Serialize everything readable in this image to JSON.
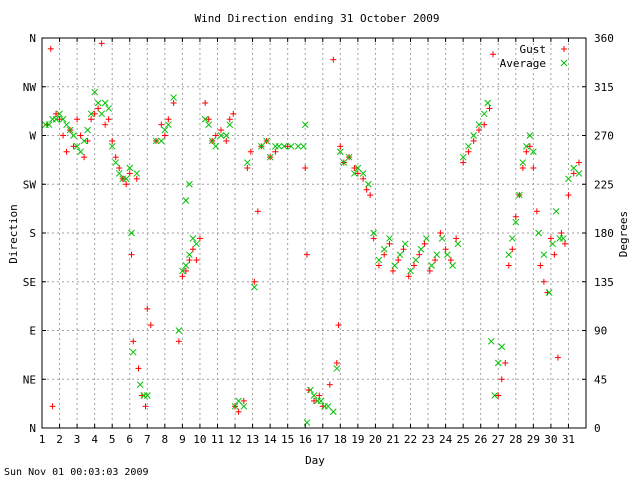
{
  "chart_data": {
    "type": "scatter",
    "title": "Wind Direction ending 31 October 2009",
    "xlabel": "Day",
    "ylabel_left": "Direction",
    "ylabel_right": "Degrees",
    "footer": "Sun Nov 01 00:03:03 2009",
    "xlim": [
      1,
      32
    ],
    "ylim": [
      0,
      360
    ],
    "grid": true,
    "legend_position": "top-right",
    "x_ticks": [
      "1",
      "2",
      "3",
      "4",
      "5",
      "6",
      "7",
      "8",
      "9",
      "10",
      "11",
      "12",
      "13",
      "14",
      "15",
      "16",
      "17",
      "18",
      "19",
      "20",
      "21",
      "22",
      "23",
      "24",
      "25",
      "26",
      "27",
      "28",
      "29",
      "30",
      "31"
    ],
    "left_ticks": [
      {
        "value": 0,
        "label": "N"
      },
      {
        "value": 45,
        "label": "NE"
      },
      {
        "value": 90,
        "label": "E"
      },
      {
        "value": 135,
        "label": "SE"
      },
      {
        "value": 180,
        "label": "S"
      },
      {
        "value": 225,
        "label": "SW"
      },
      {
        "value": 270,
        "label": "W"
      },
      {
        "value": 315,
        "label": "NW"
      },
      {
        "value": 360,
        "label": "N"
      }
    ],
    "right_ticks": [
      "0",
      "45",
      "90",
      "135",
      "180",
      "225",
      "270",
      "315",
      "360"
    ],
    "colors": {
      "gust": "#ff0000",
      "average": "#00c000",
      "grid": "#a0a0a0"
    },
    "series": [
      {
        "name": "Gust",
        "marker": "plus",
        "points": [
          [
            1.3,
            280
          ],
          [
            1.5,
            350
          ],
          [
            1.6,
            20
          ],
          [
            1.8,
            290
          ],
          [
            2.0,
            285
          ],
          [
            2.2,
            270
          ],
          [
            2.4,
            255
          ],
          [
            2.6,
            275
          ],
          [
            2.8,
            260
          ],
          [
            3.0,
            285
          ],
          [
            3.2,
            270
          ],
          [
            3.4,
            250
          ],
          [
            3.6,
            265
          ],
          [
            3.8,
            285
          ],
          [
            4.0,
            290
          ],
          [
            4.2,
            295
          ],
          [
            4.4,
            355
          ],
          [
            4.6,
            280
          ],
          [
            4.8,
            285
          ],
          [
            5.0,
            265
          ],
          [
            5.2,
            250
          ],
          [
            5.4,
            240
          ],
          [
            5.6,
            230
          ],
          [
            5.8,
            225
          ],
          [
            6.0,
            235
          ],
          [
            6.1,
            160
          ],
          [
            6.2,
            80
          ],
          [
            6.4,
            230
          ],
          [
            6.5,
            55
          ],
          [
            6.7,
            30
          ],
          [
            6.9,
            20
          ],
          [
            7.0,
            110
          ],
          [
            7.2,
            95
          ],
          [
            7.5,
            265
          ],
          [
            7.8,
            280
          ],
          [
            8.0,
            270
          ],
          [
            8.2,
            285
          ],
          [
            8.5,
            300
          ],
          [
            8.8,
            80
          ],
          [
            9.0,
            140
          ],
          [
            9.2,
            145
          ],
          [
            9.4,
            155
          ],
          [
            9.6,
            165
          ],
          [
            9.8,
            155
          ],
          [
            10.0,
            175
          ],
          [
            10.3,
            300
          ],
          [
            10.5,
            285
          ],
          [
            10.7,
            265
          ],
          [
            10.9,
            270
          ],
          [
            11.2,
            275
          ],
          [
            11.5,
            265
          ],
          [
            11.7,
            285
          ],
          [
            11.9,
            290
          ],
          [
            12.0,
            20
          ],
          [
            12.2,
            15
          ],
          [
            12.5,
            25
          ],
          [
            12.7,
            240
          ],
          [
            12.9,
            255
          ],
          [
            13.1,
            135
          ],
          [
            13.3,
            200
          ],
          [
            13.5,
            260
          ],
          [
            13.8,
            265
          ],
          [
            14.0,
            250
          ],
          [
            14.3,
            255
          ],
          [
            15.0,
            260
          ],
          [
            16.0,
            240
          ],
          [
            16.1,
            160
          ],
          [
            16.2,
            35
          ],
          [
            16.5,
            25
          ],
          [
            16.8,
            30
          ],
          [
            17.0,
            20
          ],
          [
            17.4,
            40
          ],
          [
            17.6,
            340
          ],
          [
            17.8,
            60
          ],
          [
            17.9,
            95
          ],
          [
            18.0,
            260
          ],
          [
            18.2,
            245
          ],
          [
            18.5,
            250
          ],
          [
            18.8,
            240
          ],
          [
            19.0,
            235
          ],
          [
            19.3,
            230
          ],
          [
            19.5,
            220
          ],
          [
            19.7,
            215
          ],
          [
            19.9,
            175
          ],
          [
            20.2,
            150
          ],
          [
            20.5,
            160
          ],
          [
            20.8,
            170
          ],
          [
            21.0,
            145
          ],
          [
            21.3,
            155
          ],
          [
            21.6,
            165
          ],
          [
            21.9,
            140
          ],
          [
            22.2,
            150
          ],
          [
            22.5,
            160
          ],
          [
            22.8,
            170
          ],
          [
            23.1,
            145
          ],
          [
            23.4,
            155
          ],
          [
            23.7,
            180
          ],
          [
            24.0,
            165
          ],
          [
            24.3,
            155
          ],
          [
            24.6,
            175
          ],
          [
            25.0,
            245
          ],
          [
            25.3,
            255
          ],
          [
            25.6,
            265
          ],
          [
            25.9,
            275
          ],
          [
            26.2,
            280
          ],
          [
            26.5,
            295
          ],
          [
            26.7,
            345
          ],
          [
            27.0,
            30
          ],
          [
            27.2,
            45
          ],
          [
            27.4,
            60
          ],
          [
            27.6,
            150
          ],
          [
            27.8,
            165
          ],
          [
            28.0,
            195
          ],
          [
            28.2,
            215
          ],
          [
            28.4,
            240
          ],
          [
            28.6,
            255
          ],
          [
            28.8,
            260
          ],
          [
            29.0,
            240
          ],
          [
            29.2,
            200
          ],
          [
            29.4,
            150
          ],
          [
            29.6,
            135
          ],
          [
            29.8,
            125
          ],
          [
            30.0,
            175
          ],
          [
            30.2,
            160
          ],
          [
            30.4,
            65
          ],
          [
            30.6,
            180
          ],
          [
            30.8,
            170
          ],
          [
            31.0,
            215
          ],
          [
            31.3,
            235
          ],
          [
            31.6,
            245
          ]
        ]
      },
      {
        "name": "Average",
        "marker": "cross",
        "points": [
          [
            1.2,
            280
          ],
          [
            1.4,
            280
          ],
          [
            1.6,
            285
          ],
          [
            1.8,
            285
          ],
          [
            2.0,
            290
          ],
          [
            2.2,
            285
          ],
          [
            2.4,
            280
          ],
          [
            2.6,
            275
          ],
          [
            2.8,
            270
          ],
          [
            3.0,
            260
          ],
          [
            3.2,
            255
          ],
          [
            3.4,
            265
          ],
          [
            3.6,
            275
          ],
          [
            3.8,
            290
          ],
          [
            4.0,
            310
          ],
          [
            4.2,
            300
          ],
          [
            4.4,
            290
          ],
          [
            4.6,
            300
          ],
          [
            4.8,
            295
          ],
          [
            5.0,
            260
          ],
          [
            5.2,
            245
          ],
          [
            5.4,
            235
          ],
          [
            5.6,
            230
          ],
          [
            5.8,
            230
          ],
          [
            6.0,
            240
          ],
          [
            6.1,
            180
          ],
          [
            6.2,
            70
          ],
          [
            6.4,
            235
          ],
          [
            6.6,
            40
          ],
          [
            6.8,
            30
          ],
          [
            7.0,
            30
          ],
          [
            7.5,
            265
          ],
          [
            7.8,
            265
          ],
          [
            8.0,
            275
          ],
          [
            8.2,
            280
          ],
          [
            8.5,
            305
          ],
          [
            8.8,
            90
          ],
          [
            9.0,
            145
          ],
          [
            9.2,
            150
          ],
          [
            9.4,
            160
          ],
          [
            9.6,
            175
          ],
          [
            9.8,
            170
          ],
          [
            9.2,
            210
          ],
          [
            9.4,
            225
          ],
          [
            10.3,
            285
          ],
          [
            10.5,
            280
          ],
          [
            10.7,
            265
          ],
          [
            10.9,
            260
          ],
          [
            11.2,
            270
          ],
          [
            11.5,
            270
          ],
          [
            11.7,
            280
          ],
          [
            12.0,
            20
          ],
          [
            12.2,
            25
          ],
          [
            12.5,
            20
          ],
          [
            12.7,
            245
          ],
          [
            13.1,
            130
          ],
          [
            13.5,
            260
          ],
          [
            13.8,
            265
          ],
          [
            14.0,
            250
          ],
          [
            14.3,
            260
          ],
          [
            14.5,
            260
          ],
          [
            14.8,
            260
          ],
          [
            15.2,
            260
          ],
          [
            15.6,
            260
          ],
          [
            15.9,
            260
          ],
          [
            16.0,
            280
          ],
          [
            16.1,
            5
          ],
          [
            16.3,
            35
          ],
          [
            16.5,
            30
          ],
          [
            16.7,
            25
          ],
          [
            16.9,
            25
          ],
          [
            17.1,
            20
          ],
          [
            17.3,
            20
          ],
          [
            17.6,
            15
          ],
          [
            17.8,
            55
          ],
          [
            18.0,
            255
          ],
          [
            18.2,
            245
          ],
          [
            18.5,
            250
          ],
          [
            18.8,
            235
          ],
          [
            19.0,
            240
          ],
          [
            19.3,
            235
          ],
          [
            19.6,
            225
          ],
          [
            19.9,
            180
          ],
          [
            20.2,
            155
          ],
          [
            20.5,
            165
          ],
          [
            20.8,
            175
          ],
          [
            21.1,
            150
          ],
          [
            21.4,
            160
          ],
          [
            21.7,
            170
          ],
          [
            22.0,
            145
          ],
          [
            22.3,
            155
          ],
          [
            22.6,
            165
          ],
          [
            22.9,
            175
          ],
          [
            23.2,
            150
          ],
          [
            23.5,
            160
          ],
          [
            23.8,
            175
          ],
          [
            24.1,
            160
          ],
          [
            24.4,
            150
          ],
          [
            24.7,
            170
          ],
          [
            25.0,
            250
          ],
          [
            25.3,
            260
          ],
          [
            25.6,
            270
          ],
          [
            25.9,
            280
          ],
          [
            26.2,
            290
          ],
          [
            26.4,
            300
          ],
          [
            26.6,
            80
          ],
          [
            26.8,
            30
          ],
          [
            27.0,
            60
          ],
          [
            27.2,
            75
          ],
          [
            27.6,
            160
          ],
          [
            27.8,
            175
          ],
          [
            28.0,
            190
          ],
          [
            28.2,
            215
          ],
          [
            28.4,
            245
          ],
          [
            28.6,
            260
          ],
          [
            28.8,
            270
          ],
          [
            29.0,
            255
          ],
          [
            29.3,
            180
          ],
          [
            29.6,
            160
          ],
          [
            29.9,
            125
          ],
          [
            30.1,
            170
          ],
          [
            30.3,
            200
          ],
          [
            30.5,
            175
          ],
          [
            30.7,
            175
          ],
          [
            31.0,
            230
          ],
          [
            31.3,
            240
          ],
          [
            31.6,
            235
          ]
        ]
      }
    ]
  }
}
